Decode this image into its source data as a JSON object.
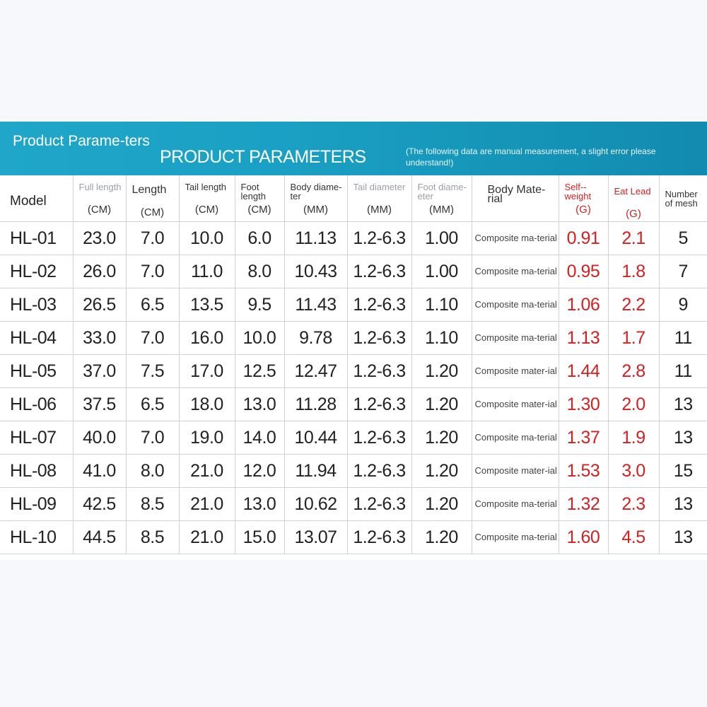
{
  "banner": {
    "left_title": "Product Parame-ters",
    "title": "PRODUCT PARAMETERS",
    "note": "(The following data are manual measurement, a slight error please understand!)"
  },
  "colors": {
    "banner": "#1aa0c4",
    "accent_red": "#d42020"
  },
  "columns": [
    {
      "name": "Model",
      "unit": ""
    },
    {
      "name": "Full length",
      "unit": "(CM)"
    },
    {
      "name": "Length",
      "unit": "(CM)"
    },
    {
      "name": "Tail length",
      "unit": "(CM)"
    },
    {
      "name": "Foot length",
      "unit": "(CM)"
    },
    {
      "name": "Body diame-ter",
      "unit": "(MM)"
    },
    {
      "name": "Tail diameter",
      "unit": "(MM)"
    },
    {
      "name": "Foot diame-eter",
      "unit": "(MM)"
    },
    {
      "name": "Body Mate-rial",
      "unit": ""
    },
    {
      "name": "Self--weight",
      "unit": "(G)"
    },
    {
      "name": "Eat Lead",
      "unit": "(G)"
    },
    {
      "name": "Number of mesh",
      "unit": ""
    }
  ],
  "rows": [
    {
      "model": "HL-01",
      "full": "23.0",
      "length": "7.0",
      "tail": "10.0",
      "foot": "6.0",
      "body_d": "11.13",
      "tail_d": "1.2-6.3",
      "foot_d": "1.00",
      "material": "Composite ma-terial",
      "weight": "0.91",
      "lead": "2.1",
      "mesh": "5"
    },
    {
      "model": "HL-02",
      "full": "26.0",
      "length": "7.0",
      "tail": "11.0",
      "foot": "8.0",
      "body_d": "10.43",
      "tail_d": "1.2-6.3",
      "foot_d": "1.00",
      "material": "Composite ma-terial",
      "weight": "0.95",
      "lead": "1.8",
      "mesh": "7"
    },
    {
      "model": "HL-03",
      "full": "26.5",
      "length": "6.5",
      "tail": "13.5",
      "foot": "9.5",
      "body_d": "11.43",
      "tail_d": "1.2-6.3",
      "foot_d": "1.10",
      "material": "Composite ma-terial",
      "weight": "1.06",
      "lead": "2.2",
      "mesh": "9"
    },
    {
      "model": "HL-04",
      "full": "33.0",
      "length": "7.0",
      "tail": "16.0",
      "foot": "10.0",
      "body_d": "9.78",
      "tail_d": "1.2-6.3",
      "foot_d": "1.10",
      "material": "Composite ma-terial",
      "weight": "1.13",
      "lead": "1.7",
      "mesh": "11"
    },
    {
      "model": "HL-05",
      "full": "37.0",
      "length": "7.5",
      "tail": "17.0",
      "foot": "12.5",
      "body_d": "12.47",
      "tail_d": "1.2-6.3",
      "foot_d": "1.20",
      "material": "Composite mater-ial",
      "weight": "1.44",
      "lead": "2.8",
      "mesh": "11"
    },
    {
      "model": "HL-06",
      "full": "37.5",
      "length": "6.5",
      "tail": "18.0",
      "foot": "13.0",
      "body_d": "11.28",
      "tail_d": "1.2-6.3",
      "foot_d": "1.20",
      "material": "Composite mater-ial",
      "weight": "1.30",
      "lead": "2.0",
      "mesh": "13"
    },
    {
      "model": "HL-07",
      "full": "40.0",
      "length": "7.0",
      "tail": "19.0",
      "foot": "14.0",
      "body_d": "10.44",
      "tail_d": "1.2-6.3",
      "foot_d": "1.20",
      "material": "Composite ma-terial",
      "weight": "1.37",
      "lead": "1.9",
      "mesh": "13"
    },
    {
      "model": "HL-08",
      "full": "41.0",
      "length": "8.0",
      "tail": "21.0",
      "foot": "12.0",
      "body_d": "11.94",
      "tail_d": "1.2-6.3",
      "foot_d": "1.20",
      "material": "Composite mater-ial",
      "weight": "1.53",
      "lead": "3.0",
      "mesh": "15"
    },
    {
      "model": "HL-09",
      "full": "42.5",
      "length": "8.5",
      "tail": "21.0",
      "foot": "13.0",
      "body_d": "10.62",
      "tail_d": "1.2-6.3",
      "foot_d": "1.20",
      "material": "Composite ma-terial",
      "weight": "1.32",
      "lead": "2.3",
      "mesh": "13"
    },
    {
      "model": "HL-10",
      "full": "44.5",
      "length": "8.5",
      "tail": "21.0",
      "foot": "15.0",
      "body_d": "13.07",
      "tail_d": "1.2-6.3",
      "foot_d": "1.20",
      "material": "Composite ma-terial",
      "weight": "1.60",
      "lead": "4.5",
      "mesh": "13"
    }
  ]
}
